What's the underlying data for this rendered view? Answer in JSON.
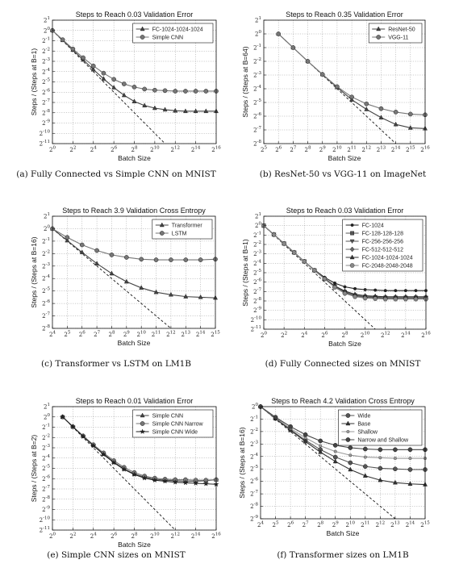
{
  "chart_data": [
    {
      "panel": "a",
      "type": "line",
      "title": "Steps to Reach 0.03 Validation Error",
      "xlabel": "Batch Size",
      "ylabel": "Steps / (Steps at B=1)",
      "caption": "(a) Fully Connected vs Simple CNN on MNIST",
      "x_scale": "log2",
      "y_scale": "log2",
      "xlim_exp": [
        0,
        16
      ],
      "ylim_exp": [
        -11,
        1
      ],
      "x_ticks_exp": [
        0,
        2,
        4,
        6,
        8,
        10,
        12,
        14,
        16
      ],
      "y_ticks_exp": [
        1,
        0,
        -1,
        -2,
        -3,
        -4,
        -5,
        -6,
        -7,
        -8,
        -9,
        -10,
        -11
      ],
      "legend_position": "top-right",
      "reference_line": {
        "style": "dashed",
        "slope": -1,
        "points": [
          [
            0,
            0
          ],
          [
            11,
            -11
          ]
        ]
      },
      "series": [
        {
          "name": "FC-1024-1024-1024",
          "marker": "triangle",
          "color": "#444444",
          "x_exp": [
            0,
            1,
            2,
            3,
            4,
            5,
            6,
            7,
            8,
            9,
            10,
            11,
            12,
            13,
            14,
            15,
            16
          ],
          "y_exp": [
            0,
            -0.95,
            -1.9,
            -2.85,
            -3.8,
            -4.7,
            -5.55,
            -6.3,
            -6.9,
            -7.3,
            -7.55,
            -7.7,
            -7.8,
            -7.85,
            -7.85,
            -7.85,
            -7.85
          ]
        },
        {
          "name": "Simple CNN",
          "marker": "circle",
          "color": "#777777",
          "x_exp": [
            0,
            1,
            2,
            3,
            4,
            5,
            6,
            7,
            8,
            9,
            10,
            11,
            12,
            13,
            14,
            15,
            16
          ],
          "y_exp": [
            0,
            -0.9,
            -1.8,
            -2.65,
            -3.45,
            -4.15,
            -4.75,
            -5.2,
            -5.5,
            -5.7,
            -5.8,
            -5.85,
            -5.9,
            -5.9,
            -5.9,
            -5.9,
            -5.9
          ]
        }
      ]
    },
    {
      "panel": "b",
      "type": "line",
      "title": "Steps to Reach 0.35 Validation Error",
      "xlabel": "Batch Size",
      "ylabel": "Steps / (Steps at B=64)",
      "caption": "(b) ResNet-50 vs VGG-11 on ImageNet",
      "x_scale": "log2",
      "y_scale": "log2",
      "xlim_exp": [
        5,
        16
      ],
      "ylim_exp": [
        -8,
        1
      ],
      "x_ticks_exp": [
        5,
        6,
        7,
        8,
        9,
        10,
        11,
        12,
        13,
        14,
        15,
        16
      ],
      "y_ticks_exp": [
        1,
        0,
        -1,
        -2,
        -3,
        -4,
        -5,
        -6,
        -7,
        -8
      ],
      "legend_position": "top-right",
      "reference_line": {
        "style": "dashed",
        "slope": -1,
        "points": [
          [
            6,
            0
          ],
          [
            14.5,
            -8.5
          ]
        ]
      },
      "series": [
        {
          "name": "ResNet-50",
          "marker": "triangle",
          "color": "#444444",
          "x_exp": [
            6,
            7,
            8,
            9,
            10,
            11,
            12,
            13,
            14,
            15,
            16
          ],
          "y_exp": [
            0,
            -1,
            -2,
            -2.95,
            -3.9,
            -4.8,
            -5.5,
            -6.1,
            -6.6,
            -6.85,
            -6.9
          ]
        },
        {
          "name": "VGG-11",
          "marker": "circle",
          "color": "#777777",
          "x_exp": [
            6,
            7,
            8,
            9,
            10,
            11,
            12,
            13,
            14,
            15,
            16
          ],
          "y_exp": [
            0,
            -1,
            -2,
            -2.95,
            -3.85,
            -4.6,
            -5.1,
            -5.45,
            -5.7,
            -5.85,
            -5.9
          ]
        }
      ]
    },
    {
      "panel": "c",
      "type": "line",
      "title": "Steps to Reach 3.9 Validation Cross Entropy",
      "xlabel": "Batch Size",
      "ylabel": "Steps / (Steps at B=16)",
      "caption": "(c) Transformer vs LSTM on LM1B",
      "x_scale": "log2",
      "y_scale": "log2",
      "xlim_exp": [
        4,
        15
      ],
      "ylim_exp": [
        -8,
        1
      ],
      "x_ticks_exp": [
        4,
        5,
        6,
        7,
        8,
        9,
        10,
        11,
        12,
        13,
        14,
        15
      ],
      "y_ticks_exp": [
        1,
        0,
        -1,
        -2,
        -3,
        -4,
        -5,
        -6,
        -7,
        -8
      ],
      "legend_position": "top-right",
      "reference_line": {
        "style": "dashed",
        "slope": -1,
        "points": [
          [
            4,
            0
          ],
          [
            12.2,
            -8.2
          ]
        ]
      },
      "series": [
        {
          "name": "Transformer",
          "marker": "triangle",
          "color": "#444444",
          "x_exp": [
            4,
            5,
            6,
            7,
            8,
            9,
            10,
            11,
            12,
            13,
            14,
            15
          ],
          "y_exp": [
            0,
            -0.95,
            -1.9,
            -2.8,
            -3.6,
            -4.25,
            -4.75,
            -5.1,
            -5.3,
            -5.45,
            -5.5,
            -5.55
          ]
        },
        {
          "name": "LSTM",
          "marker": "circle",
          "color": "#777777",
          "x_exp": [
            4,
            5,
            6,
            7,
            8,
            9,
            10,
            11,
            12,
            13,
            14,
            15
          ],
          "y_exp": [
            0,
            -0.7,
            -1.3,
            -1.75,
            -2.1,
            -2.3,
            -2.45,
            -2.5,
            -2.5,
            -2.5,
            -2.5,
            -2.45
          ]
        }
      ]
    },
    {
      "panel": "d",
      "type": "line",
      "title": "Steps to Reach 0.03 Validation Error",
      "xlabel": "Batch Size",
      "ylabel": "Steps / (Steps at B=1)",
      "caption": "(d) Fully Connected sizes on MNIST",
      "x_scale": "log2",
      "y_scale": "log2",
      "xlim_exp": [
        0,
        16
      ],
      "ylim_exp": [
        -11,
        1
      ],
      "x_ticks_exp": [
        0,
        2,
        4,
        6,
        8,
        10,
        12,
        14,
        16
      ],
      "y_ticks_exp": [
        1,
        0,
        -1,
        -2,
        -3,
        -4,
        -5,
        -6,
        -7,
        -8,
        -9,
        -10,
        -11
      ],
      "legend_position": "top-right",
      "reference_line": {
        "style": "dashed",
        "slope": -1,
        "points": [
          [
            0,
            0
          ],
          [
            11,
            -11
          ]
        ]
      },
      "series": [
        {
          "name": "FC-1024",
          "marker": "dot",
          "color": "#222222",
          "x_exp": [
            0,
            1,
            2,
            3,
            4,
            5,
            6,
            7,
            8,
            9,
            10,
            11,
            12,
            13,
            14,
            15,
            16
          ],
          "y_exp": [
            0,
            -0.95,
            -1.9,
            -2.85,
            -3.8,
            -4.7,
            -5.5,
            -6.1,
            -6.5,
            -6.7,
            -6.8,
            -6.85,
            -6.9,
            -6.9,
            -6.9,
            -6.9,
            -6.9
          ]
        },
        {
          "name": "FC-128-128-128",
          "marker": "square",
          "color": "#555555",
          "x_exp": [
            0,
            1,
            2,
            3,
            4,
            5,
            6,
            7,
            8,
            9,
            10,
            11,
            12,
            13,
            14,
            15,
            16
          ],
          "y_exp": [
            0,
            -0.95,
            -1.9,
            -2.85,
            -3.8,
            -4.75,
            -5.65,
            -6.45,
            -7.05,
            -7.4,
            -7.55,
            -7.6,
            -7.65,
            -7.65,
            -7.65,
            -7.65,
            -7.65
          ]
        },
        {
          "name": "FC-256-256-256",
          "marker": "triangle-down",
          "color": "#555555",
          "x_exp": [
            0,
            1,
            2,
            3,
            4,
            5,
            6,
            7,
            8,
            9,
            10,
            11,
            12,
            13,
            14,
            15,
            16
          ],
          "y_exp": [
            0,
            -0.95,
            -1.9,
            -2.85,
            -3.8,
            -4.75,
            -5.65,
            -6.5,
            -7.1,
            -7.45,
            -7.6,
            -7.65,
            -7.7,
            -7.7,
            -7.7,
            -7.7,
            -7.7
          ]
        },
        {
          "name": "FC-512-512-512",
          "marker": "diamond",
          "color": "#666666",
          "x_exp": [
            0,
            1,
            2,
            3,
            4,
            5,
            6,
            7,
            8,
            9,
            10,
            11,
            12,
            13,
            14,
            15,
            16
          ],
          "y_exp": [
            0,
            -0.95,
            -1.9,
            -2.85,
            -3.8,
            -4.75,
            -5.65,
            -6.5,
            -7.15,
            -7.5,
            -7.65,
            -7.7,
            -7.75,
            -7.75,
            -7.75,
            -7.75,
            -7.75
          ]
        },
        {
          "name": "FC-1024-1024-1024",
          "marker": "triangle",
          "color": "#333333",
          "x_exp": [
            0,
            1,
            2,
            3,
            4,
            5,
            6,
            7,
            8,
            9,
            10,
            11,
            12,
            13,
            14,
            15,
            16
          ],
          "y_exp": [
            0,
            -0.95,
            -1.9,
            -2.85,
            -3.8,
            -4.75,
            -5.6,
            -6.4,
            -6.95,
            -7.3,
            -7.45,
            -7.5,
            -7.55,
            -7.55,
            -7.55,
            -7.55,
            -7.55
          ]
        },
        {
          "name": "FC-2048-2048-2048",
          "marker": "hexagon",
          "color": "#888888",
          "x_exp": [
            0,
            1,
            2,
            3,
            4,
            5,
            6,
            7,
            8,
            9,
            10,
            11,
            12,
            13,
            14,
            15,
            16
          ],
          "y_exp": [
            0,
            -0.95,
            -1.9,
            -2.85,
            -3.8,
            -4.75,
            -5.65,
            -6.55,
            -7.2,
            -7.55,
            -7.7,
            -7.75,
            -7.8,
            -7.8,
            -7.8,
            -7.8,
            -7.8
          ]
        }
      ]
    },
    {
      "panel": "e",
      "type": "line",
      "title": "Steps to Reach 0.01 Validation Error",
      "xlabel": "Batch Size",
      "ylabel": "Steps / (Steps at B=2)",
      "caption": "(e) Simple CNN sizes on MNIST",
      "x_scale": "log2",
      "y_scale": "log2",
      "xlim_exp": [
        0,
        16
      ],
      "ylim_exp": [
        -11,
        1
      ],
      "x_ticks_exp": [
        0,
        2,
        4,
        6,
        8,
        10,
        12,
        14,
        16
      ],
      "y_ticks_exp": [
        1,
        0,
        -1,
        -2,
        -3,
        -4,
        -5,
        -6,
        -7,
        -8,
        -9,
        -10,
        -11
      ],
      "legend_position": "top-right",
      "reference_line": {
        "style": "dashed",
        "slope": -1,
        "points": [
          [
            1,
            0
          ],
          [
            12.5,
            -11.5
          ]
        ]
      },
      "series": [
        {
          "name": "Simple CNN",
          "marker": "triangle",
          "color": "#444444",
          "x_exp": [
            1,
            2,
            3,
            4,
            5,
            6,
            7,
            8,
            9,
            10,
            11,
            12,
            13,
            14,
            15,
            16
          ],
          "y_exp": [
            0,
            -0.95,
            -1.85,
            -2.75,
            -3.6,
            -4.4,
            -5.05,
            -5.55,
            -5.85,
            -6.05,
            -6.15,
            -6.2,
            -6.25,
            -6.25,
            -6.2,
            -6.1
          ]
        },
        {
          "name": "Simple CNN Narrow",
          "marker": "circle",
          "color": "#777777",
          "x_exp": [
            1,
            2,
            3,
            4,
            5,
            6,
            7,
            8,
            9,
            10,
            11,
            12,
            13,
            14,
            15,
            16
          ],
          "y_exp": [
            0,
            -0.95,
            -1.85,
            -2.7,
            -3.5,
            -4.25,
            -4.9,
            -5.4,
            -5.75,
            -5.95,
            -6.05,
            -6.1,
            -6.1,
            -6.15,
            -6.15,
            -6.1
          ]
        },
        {
          "name": "Simple CNN Wide",
          "marker": "star",
          "color": "#222222",
          "x_exp": [
            1,
            2,
            3,
            4,
            5,
            6,
            7,
            8,
            9,
            10,
            11,
            12,
            13,
            14,
            15,
            16
          ],
          "y_exp": [
            0,
            -0.95,
            -1.9,
            -2.8,
            -3.65,
            -4.45,
            -5.1,
            -5.6,
            -5.95,
            -6.15,
            -6.25,
            -6.35,
            -6.4,
            -6.45,
            -6.5,
            -6.55
          ]
        }
      ]
    },
    {
      "panel": "f",
      "type": "line",
      "title": "Steps to Reach 4.2 Validation Cross Entropy",
      "xlabel": "Batch Size",
      "ylabel": "Steps / (Steps at B=16)",
      "caption": "(f) Transformer sizes on LM1B",
      "x_scale": "log2",
      "y_scale": "log2",
      "xlim_exp": [
        4,
        15
      ],
      "ylim_exp": [
        -9,
        0
      ],
      "x_ticks_exp": [
        4,
        5,
        6,
        7,
        8,
        9,
        10,
        11,
        12,
        13,
        14,
        15
      ],
      "y_ticks_exp": [
        0,
        -1,
        -2,
        -3,
        -4,
        -5,
        -6,
        -7,
        -8,
        -9
      ],
      "legend_position": "top-right",
      "reference_line": {
        "style": "dashed",
        "slope": -1,
        "points": [
          [
            4,
            0
          ],
          [
            13.3,
            -9.3
          ]
        ]
      },
      "series": [
        {
          "name": "Wide",
          "marker": "circle",
          "color": "#555555",
          "x_exp": [
            4,
            5,
            6,
            7,
            8,
            9,
            10,
            11,
            12,
            13,
            14,
            15
          ],
          "y_exp": [
            0,
            -0.95,
            -1.85,
            -2.7,
            -3.45,
            -4.05,
            -4.5,
            -4.8,
            -4.95,
            -5.0,
            -5.05,
            -5.05
          ]
        },
        {
          "name": "Base",
          "marker": "triangle",
          "color": "#333333",
          "x_exp": [
            4,
            5,
            6,
            7,
            8,
            9,
            10,
            11,
            12,
            13,
            14,
            15
          ],
          "y_exp": [
            0,
            -0.95,
            -1.9,
            -2.8,
            -3.65,
            -4.4,
            -5.05,
            -5.55,
            -5.9,
            -6.1,
            -6.2,
            -6.25
          ]
        },
        {
          "name": "Shallow",
          "marker": "dot",
          "color": "#999999",
          "x_exp": [
            4,
            5,
            6,
            7,
            8,
            9,
            10,
            11,
            12,
            13,
            14,
            15
          ],
          "y_exp": [
            0,
            -0.9,
            -1.75,
            -2.5,
            -3.15,
            -3.6,
            -3.9,
            -4.05,
            -4.1,
            -4.15,
            -4.15,
            -4.15
          ]
        },
        {
          "name": "Narrow and Shallow",
          "marker": "circle",
          "color": "#444444",
          "x_exp": [
            4,
            5,
            6,
            7,
            8,
            9,
            10,
            11,
            12,
            13,
            14,
            15
          ],
          "y_exp": [
            0,
            -0.85,
            -1.6,
            -2.25,
            -2.75,
            -3.1,
            -3.3,
            -3.4,
            -3.45,
            -3.45,
            -3.45,
            -3.45
          ]
        }
      ]
    }
  ]
}
